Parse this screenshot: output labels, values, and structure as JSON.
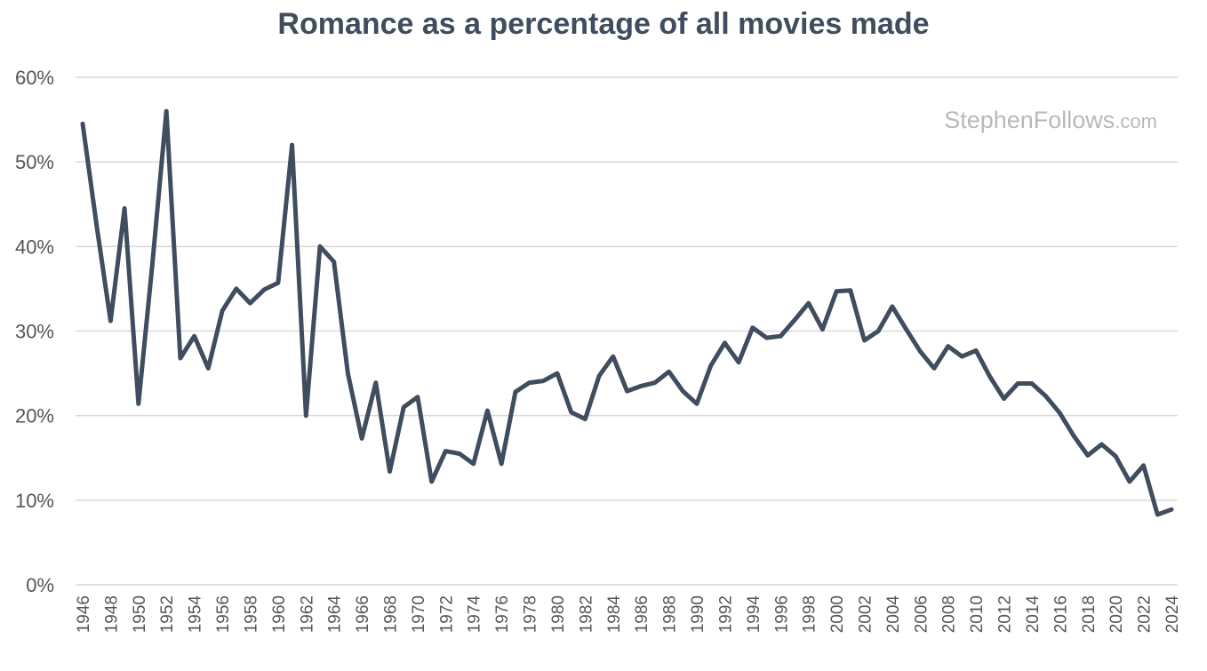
{
  "chart_data": {
    "type": "line",
    "title": "Romance as a percentage of all movies made",
    "xlabel": "",
    "ylabel": "",
    "ylim": [
      0,
      60
    ],
    "yticks": [
      "0%",
      "10%",
      "20%",
      "30%",
      "40%",
      "50%",
      "60%"
    ],
    "grid": true,
    "legend": "none",
    "x": [
      1946,
      1947,
      1948,
      1949,
      1950,
      1951,
      1952,
      1953,
      1954,
      1955,
      1956,
      1957,
      1958,
      1959,
      1960,
      1961,
      1962,
      1963,
      1964,
      1965,
      1966,
      1967,
      1968,
      1969,
      1970,
      1971,
      1972,
      1973,
      1974,
      1975,
      1976,
      1977,
      1978,
      1979,
      1980,
      1981,
      1982,
      1983,
      1984,
      1985,
      1986,
      1987,
      1988,
      1989,
      1990,
      1991,
      1992,
      1993,
      1994,
      1995,
      1996,
      1997,
      1998,
      1999,
      2000,
      2001,
      2002,
      2003,
      2004,
      2005,
      2006,
      2007,
      2008,
      2009,
      2010,
      2011,
      2012,
      2013,
      2014,
      2015,
      2016,
      2017,
      2018,
      2019,
      2020,
      2021,
      2022,
      2023,
      2024
    ],
    "xticks": [
      "1946",
      "1948",
      "1950",
      "1952",
      "1954",
      "1956",
      "1958",
      "1960",
      "1962",
      "1964",
      "1966",
      "1968",
      "1970",
      "1972",
      "1974",
      "1976",
      "1978",
      "1980",
      "1982",
      "1984",
      "1986",
      "1988",
      "1990",
      "1992",
      "1994",
      "1996",
      "1998",
      "2000",
      "2002",
      "2004",
      "2006",
      "2008",
      "2010",
      "2012",
      "2014",
      "2016",
      "2018",
      "2020",
      "2022",
      "2024"
    ],
    "series": [
      {
        "color": "#3f4d5e",
        "values": [
          54.5,
          42.5,
          31.2,
          44.5,
          21.4,
          38.0,
          56.0,
          26.8,
          29.4,
          25.6,
          32.4,
          35.0,
          33.3,
          34.9,
          35.7,
          52.0,
          20.0,
          40.0,
          38.2,
          25.0,
          17.3,
          23.9,
          13.4,
          21.0,
          22.2,
          12.2,
          15.8,
          15.5,
          14.3,
          20.6,
          14.3,
          22.8,
          23.9,
          24.1,
          25.0,
          20.4,
          19.6,
          24.7,
          27.0,
          22.9,
          23.5,
          23.9,
          25.2,
          22.9,
          21.4,
          25.9,
          28.6,
          26.3,
          30.4,
          29.2,
          29.4,
          31.3,
          33.3,
          30.2,
          34.7,
          34.8,
          28.9,
          30.0,
          32.9,
          30.2,
          27.6,
          25.6,
          28.2,
          27.0,
          27.7,
          24.6,
          22.0,
          23.8,
          23.8,
          22.3,
          20.3,
          17.6,
          15.3,
          16.6,
          15.2,
          12.2,
          14.1,
          8.3,
          8.9
        ]
      }
    ]
  },
  "watermark": {
    "main": "StephenFollows",
    "suffix": ".com"
  }
}
